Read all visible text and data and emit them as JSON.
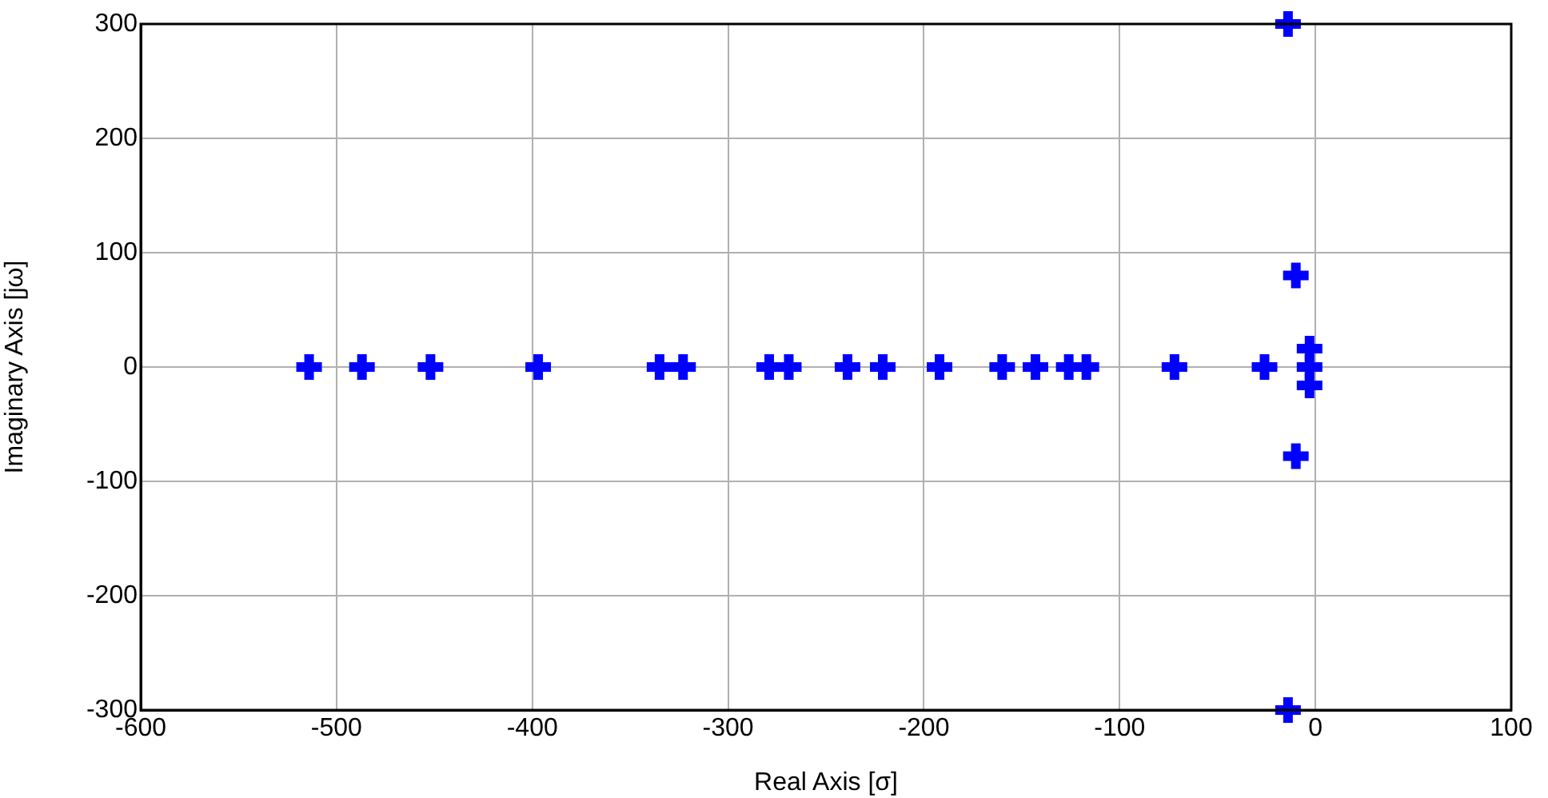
{
  "chart_data": {
    "type": "scatter",
    "xlabel": "Real Axis [σ]",
    "ylabel": "Imaginary Axis [jω]",
    "x": [
      -514,
      -487,
      -452,
      -397,
      -335,
      -323,
      -279,
      -269,
      -239,
      -221,
      -192,
      -160,
      -143,
      -126,
      -117,
      -72,
      -26,
      -14,
      -14,
      -10,
      -10,
      -3,
      -3,
      -3
    ],
    "values": [
      0,
      0,
      0,
      0,
      0,
      0,
      0,
      0,
      0,
      0,
      0,
      0,
      0,
      0,
      0,
      0,
      0,
      300,
      -300,
      80,
      -78,
      -16,
      0,
      16
    ],
    "color": "#0000ff",
    "marker": "cross",
    "grid": true,
    "xlim": [
      -600,
      100
    ],
    "xticks": [
      -600,
      -500,
      -400,
      -300,
      -200,
      -100,
      0,
      100
    ],
    "ylim": [
      -300,
      300
    ],
    "yticks": [
      -300,
      -200,
      -100,
      0,
      100,
      200,
      300
    ]
  }
}
